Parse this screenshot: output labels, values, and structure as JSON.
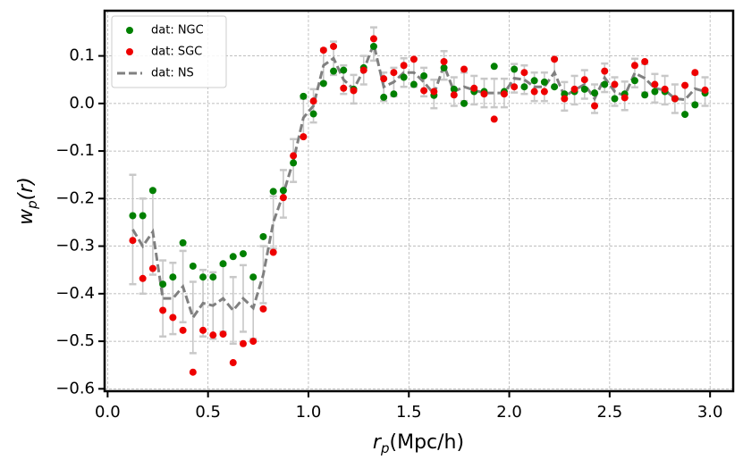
{
  "chart_data": {
    "type": "scatter",
    "xlabel": {
      "symbol": "r",
      "subscript": "p",
      "unit": "(Mpc/h)"
    },
    "ylabel": {
      "symbol": "w",
      "subscript": "p",
      "unit": "(r)"
    },
    "x": [
      0.125,
      0.175,
      0.225,
      0.275,
      0.325,
      0.375,
      0.425,
      0.475,
      0.525,
      0.575,
      0.625,
      0.675,
      0.725,
      0.775,
      0.825,
      0.875,
      0.925,
      0.975,
      1.025,
      1.075,
      1.125,
      1.175,
      1.225,
      1.275,
      1.325,
      1.375,
      1.425,
      1.475,
      1.525,
      1.575,
      1.625,
      1.675,
      1.725,
      1.775,
      1.825,
      1.875,
      1.925,
      1.975,
      2.025,
      2.075,
      2.125,
      2.175,
      2.225,
      2.275,
      2.325,
      2.375,
      2.425,
      2.475,
      2.525,
      2.575,
      2.625,
      2.675,
      2.725,
      2.775,
      2.825,
      2.875,
      2.925,
      2.975
    ],
    "series": [
      {
        "name": "dat: NGC",
        "color": "#008000",
        "style": "marker",
        "values": [
          -0.236,
          -0.236,
          -0.183,
          -0.38,
          -0.365,
          -0.293,
          -0.342,
          -0.365,
          -0.365,
          -0.337,
          -0.322,
          -0.316,
          -0.365,
          -0.28,
          -0.185,
          -0.183,
          -0.125,
          0.015,
          -0.022,
          0.042,
          0.068,
          0.07,
          0.03,
          0.075,
          0.12,
          0.013,
          0.02,
          0.055,
          0.04,
          0.058,
          0.017,
          0.075,
          0.03,
          0.0,
          0.025,
          0.025,
          0.078,
          0.025,
          0.072,
          0.035,
          0.048,
          0.045,
          0.035,
          0.02,
          0.025,
          0.03,
          0.022,
          0.04,
          0.01,
          0.02,
          0.048,
          0.018,
          0.025,
          0.025,
          0.01,
          -0.023,
          -0.003,
          0.022
        ]
      },
      {
        "name": "dat: SGC",
        "color": "#ee0000",
        "style": "marker",
        "values": [
          -0.288,
          -0.368,
          -0.347,
          -0.435,
          -0.45,
          -0.477,
          -0.565,
          -0.477,
          -0.487,
          -0.485,
          -0.545,
          -0.505,
          -0.5,
          -0.432,
          -0.313,
          -0.198,
          -0.11,
          -0.07,
          0.005,
          0.112,
          0.12,
          0.032,
          0.027,
          0.07,
          0.136,
          0.052,
          0.065,
          0.08,
          0.093,
          0.027,
          0.025,
          0.088,
          0.018,
          0.072,
          0.032,
          0.02,
          -0.033,
          0.02,
          0.035,
          0.065,
          0.025,
          0.025,
          0.093,
          0.01,
          0.03,
          0.05,
          -0.005,
          0.068,
          0.04,
          0.012,
          0.08,
          0.088,
          0.04,
          0.03,
          0.01,
          0.038,
          0.065,
          0.028
        ]
      },
      {
        "name": "dat: NS",
        "color": "#808080",
        "style": "dashed",
        "error_color": "#c8c8c8",
        "values": [
          -0.265,
          -0.3,
          -0.27,
          -0.41,
          -0.41,
          -0.385,
          -0.45,
          -0.42,
          -0.425,
          -0.41,
          -0.435,
          -0.41,
          -0.43,
          -0.36,
          -0.25,
          -0.19,
          -0.12,
          -0.03,
          -0.005,
          0.08,
          0.095,
          0.05,
          0.03,
          0.07,
          0.125,
          0.035,
          0.045,
          0.065,
          0.065,
          0.045,
          0.02,
          0.08,
          0.025,
          0.035,
          0.028,
          0.022,
          0.022,
          0.022,
          0.053,
          0.05,
          0.035,
          0.035,
          0.065,
          0.015,
          0.028,
          0.04,
          0.01,
          0.054,
          0.025,
          0.016,
          0.064,
          0.053,
          0.032,
          0.028,
          0.01,
          0.008,
          0.031,
          0.025
        ],
        "errors": [
          0.115,
          0.1,
          0.09,
          0.08,
          0.075,
          0.075,
          0.075,
          0.07,
          0.07,
          0.07,
          0.07,
          0.07,
          0.065,
          0.06,
          0.055,
          0.05,
          0.045,
          0.04,
          0.035,
          0.035,
          0.035,
          0.03,
          0.03,
          0.03,
          0.035,
          0.03,
          0.03,
          0.03,
          0.03,
          0.03,
          0.03,
          0.03,
          0.03,
          0.03,
          0.03,
          0.03,
          0.03,
          0.03,
          0.03,
          0.03,
          0.03,
          0.03,
          0.03,
          0.03,
          0.03,
          0.03,
          0.03,
          0.03,
          0.03,
          0.03,
          0.03,
          0.03,
          0.03,
          0.03,
          0.03,
          0.03,
          0.03,
          0.03
        ]
      }
    ],
    "xlim": [
      -0.015,
      3.115
    ],
    "ylim": [
      -0.605,
      0.195
    ],
    "xticks": [
      {
        "value": 0,
        "label": "0.0"
      },
      0.5,
      {
        "value": 1,
        "label": "1.0"
      },
      1.5,
      {
        "value": 2,
        "label": "2.0"
      },
      2.5,
      {
        "value": 3,
        "label": "3.0"
      }
    ],
    "yticks": [
      {
        "value": -0.6,
        "label": "−0.6"
      },
      {
        "value": -0.5,
        "label": "−0.5"
      },
      {
        "value": -0.4,
        "label": "−0.4"
      },
      {
        "value": -0.3,
        "label": "−0.3"
      },
      {
        "value": -0.2,
        "label": "−0.2"
      },
      {
        "value": -0.1,
        "label": "−0.1"
      },
      {
        "value": 0,
        "label": "0.0"
      },
      0.1
    ],
    "grid": true,
    "legend": "upper left"
  }
}
